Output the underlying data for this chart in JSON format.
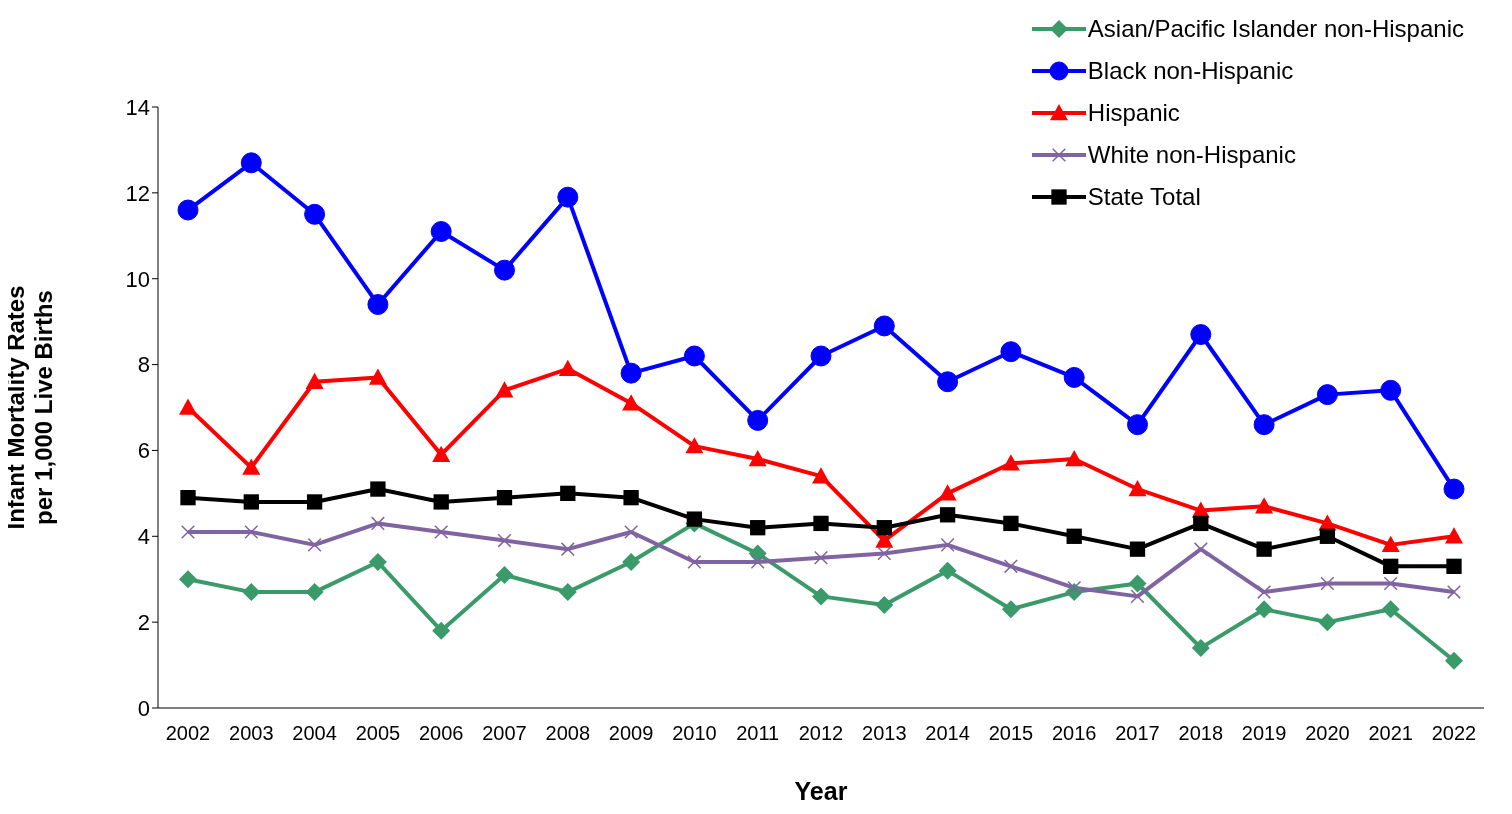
{
  "chart_data": {
    "type": "line",
    "xlabel": "Year",
    "ylabel": "Infant Mortality Rates\nper 1,000 Live Births",
    "categories": [
      "2002",
      "2003",
      "2004",
      "2005",
      "2006",
      "2007",
      "2008",
      "2009",
      "2010",
      "2011",
      "2012",
      "2013",
      "2014",
      "2015",
      "2016",
      "2017",
      "2018",
      "2019",
      "2020",
      "2021",
      "2022"
    ],
    "series": [
      {
        "name": "Asian/Pacific Islander non-Hispanic",
        "color": "#3a9a6a",
        "marker": "diamond",
        "values": [
          3.0,
          2.7,
          2.7,
          3.4,
          1.8,
          3.1,
          2.7,
          3.4,
          4.3,
          3.6,
          2.6,
          2.4,
          3.2,
          2.3,
          2.7,
          2.9,
          1.4,
          2.3,
          2.0,
          2.3,
          1.1
        ]
      },
      {
        "name": "Black non-Hispanic",
        "color": "#0000ff",
        "marker": "circle",
        "values": [
          11.6,
          12.7,
          11.5,
          9.4,
          11.1,
          10.2,
          11.9,
          7.8,
          8.2,
          6.7,
          8.2,
          8.9,
          7.6,
          8.3,
          7.7,
          6.6,
          8.7,
          6.6,
          7.3,
          7.4,
          5.1
        ]
      },
      {
        "name": "Hispanic",
        "color": "#ff0000",
        "marker": "triangle",
        "values": [
          7.0,
          5.6,
          7.6,
          7.7,
          5.9,
          7.4,
          7.9,
          7.1,
          6.1,
          5.8,
          5.4,
          3.9,
          5.0,
          5.7,
          5.8,
          5.1,
          4.6,
          4.7,
          4.3,
          3.8,
          4.0
        ]
      },
      {
        "name": "White non-Hispanic",
        "color": "#8064a2",
        "marker": "cross",
        "values": [
          4.1,
          4.1,
          3.8,
          4.3,
          4.1,
          3.9,
          3.7,
          4.1,
          3.4,
          3.4,
          3.5,
          3.6,
          3.8,
          3.3,
          2.8,
          2.6,
          3.7,
          2.7,
          2.9,
          2.9,
          2.7
        ]
      },
      {
        "name": "State Total",
        "color": "#000000",
        "marker": "square",
        "values": [
          4.9,
          4.8,
          4.8,
          5.1,
          4.8,
          4.9,
          5.0,
          4.9,
          4.4,
          4.2,
          4.3,
          4.2,
          4.5,
          4.3,
          4.0,
          3.7,
          4.3,
          3.7,
          4.0,
          3.3,
          3.3
        ]
      }
    ],
    "ylim": [
      0,
      14
    ],
    "yticks": [
      0,
      2,
      4,
      6,
      8,
      10,
      12,
      14
    ],
    "grid": false,
    "legend": "top right",
    "line_style": "solid"
  }
}
